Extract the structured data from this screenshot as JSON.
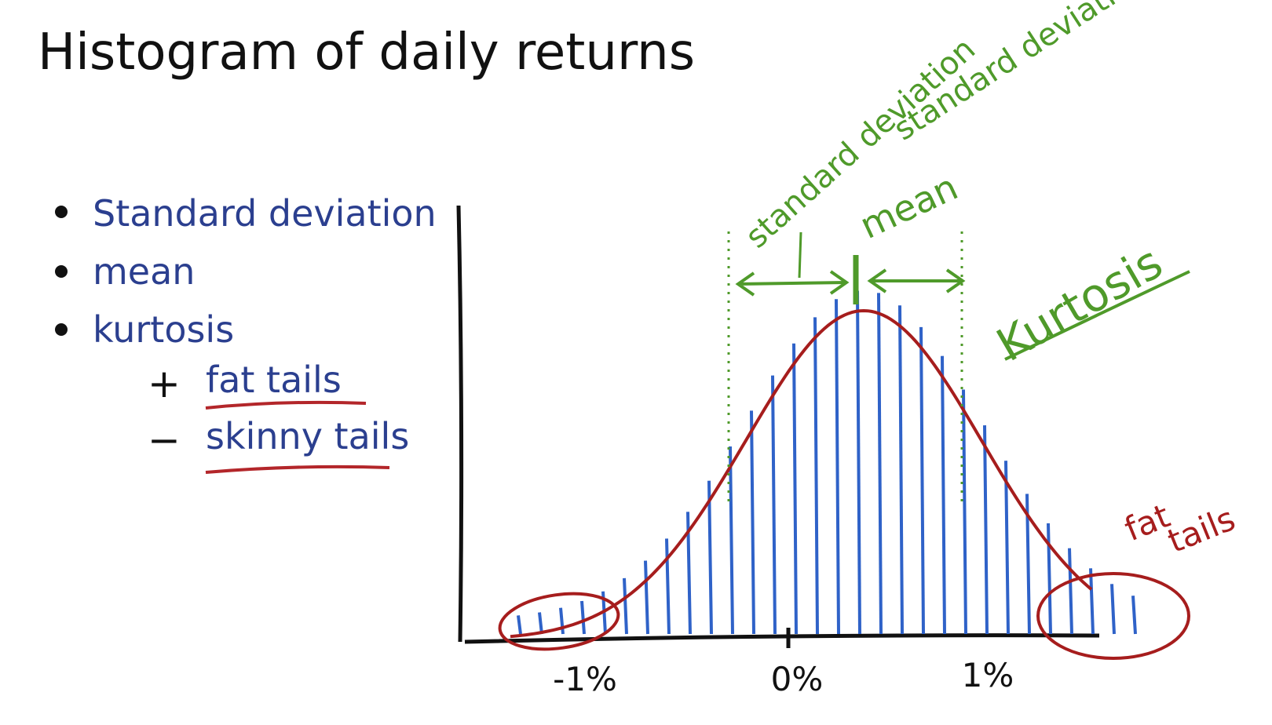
{
  "title": "Histogram of daily returns",
  "bullets": [
    "Standard deviation",
    "mean",
    "kurtosis"
  ],
  "sub_bullets": [
    {
      "sign": "+",
      "text": "fat tails"
    },
    {
      "sign": "−",
      "text": "skinny tails"
    }
  ],
  "annotations": {
    "standard_deviation_top": "standard deviation",
    "standard_deviation_arrow": "standard deviation",
    "mean": "mean",
    "kurtosis": "Kurtosis",
    "fat_tails": [
      "fat",
      "tails"
    ]
  },
  "axis_labels": [
    "-1%",
    "0%",
    "1%"
  ]
}
